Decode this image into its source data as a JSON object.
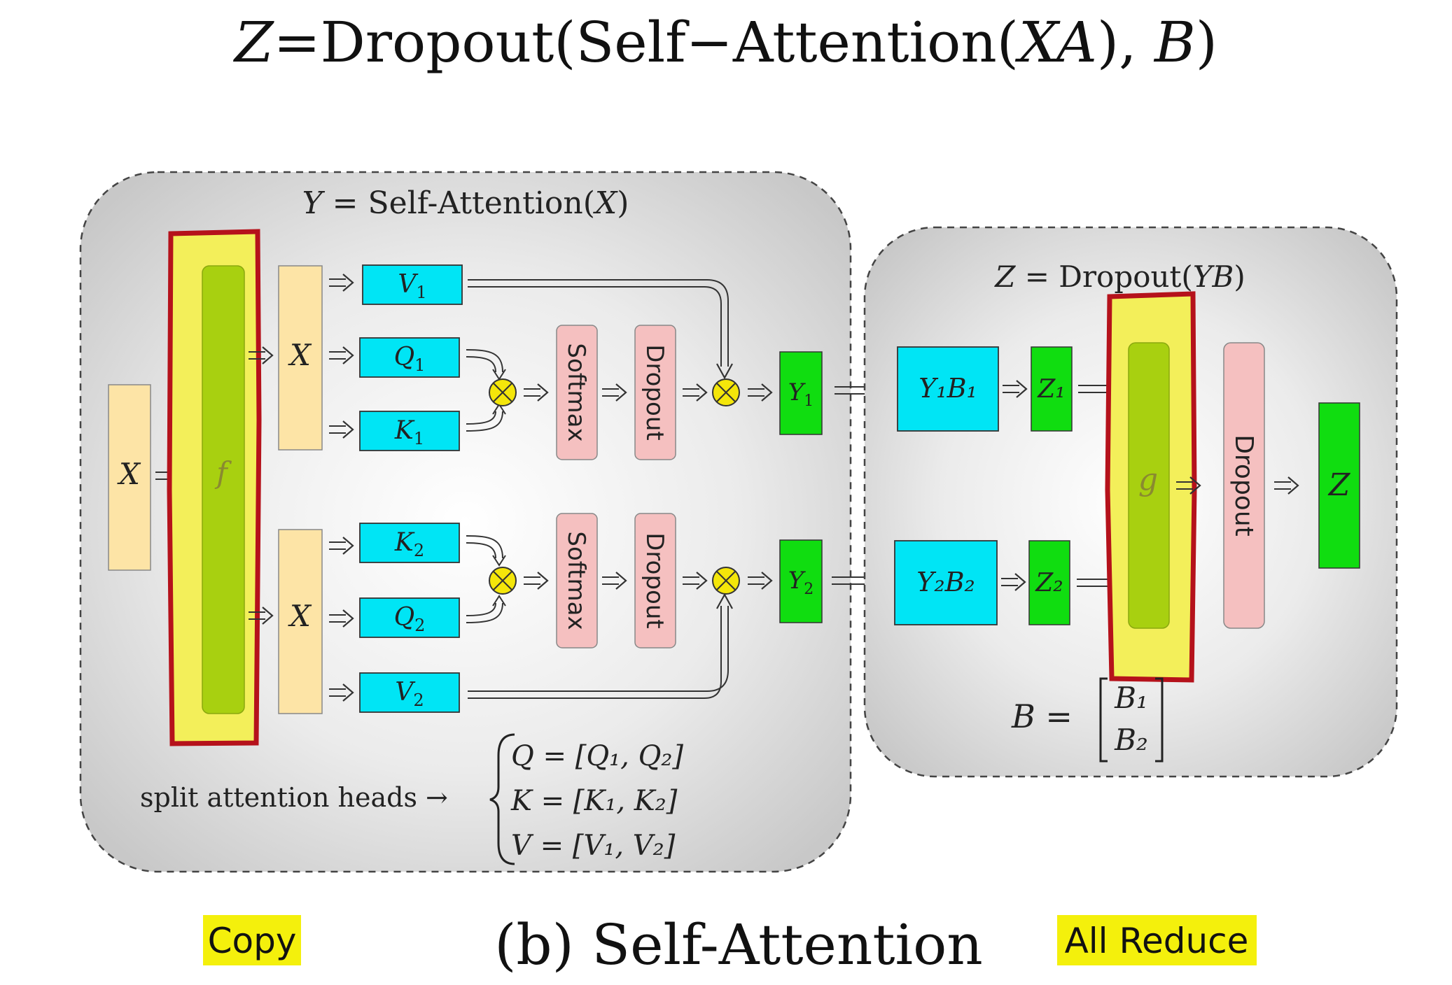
{
  "title": {
    "z": "Z",
    "equals": "=",
    "dropout": "Dropout(Self",
    "dash": "−",
    "attention": "Attention(",
    "xa": "XA",
    "close": "), ",
    "b": "B",
    "end": ")"
  },
  "left_panel": {
    "formula_y": "Y",
    "formula_rest": " = Self-Attention(",
    "formula_x": "X",
    "formula_end": ")",
    "input_x": "X",
    "f_label": "f",
    "head1": {
      "x": "X",
      "v": "V",
      "v_sub": "1",
      "q": "Q",
      "q_sub": "1",
      "k": "K",
      "k_sub": "1",
      "softmax": "Softmax",
      "dropout": "Dropout",
      "y": "Y",
      "y_sub": "1"
    },
    "head2": {
      "x": "X",
      "k": "K",
      "k_sub": "2",
      "q": "Q",
      "q_sub": "2",
      "v": "V",
      "v_sub": "2",
      "softmax": "Softmax",
      "dropout": "Dropout",
      "y": "Y",
      "y_sub": "2"
    },
    "split_label": "split attention heads →",
    "eq_q": "Q = [Q₁, Q₂]",
    "eq_k": "K = [K₁, K₂]",
    "eq_v": "V = [V₁, V₂]"
  },
  "right_panel": {
    "formula_z": "Z",
    "formula_rest": " = Dropout(",
    "formula_yb": "YB",
    "formula_end": ")",
    "y1b1": "Y₁B₁",
    "y2b2": "Y₂B₂",
    "z1": "Z₁",
    "z2": "Z₂",
    "g_label": "g",
    "dropout": "Dropout",
    "z_out": "Z",
    "b_eq": "B =",
    "b1": "B₁",
    "b2": "B₂"
  },
  "caption": "(b) Self-Attention",
  "copy_label": "Copy",
  "allreduce_label": "All Reduce",
  "colors": {
    "cyan": "#00e5f5",
    "green": "#10dd10",
    "orange_light": "#fde4a6",
    "pink": "#f5c0c0",
    "yellow_highlight": "#f3ef5a",
    "olive": "#a8d010",
    "red_outline": "#b5121b",
    "otimes": "#f4e60a"
  }
}
